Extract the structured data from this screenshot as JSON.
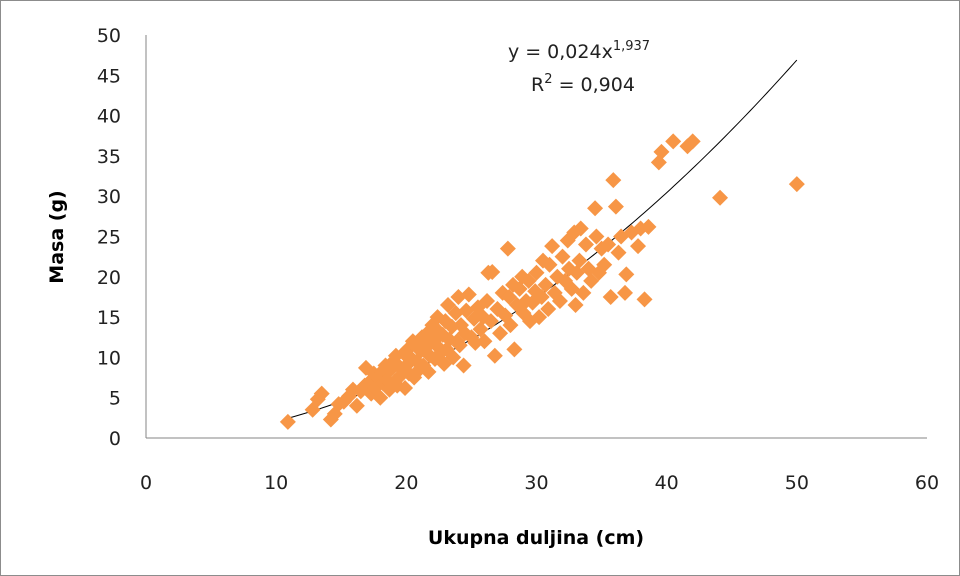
{
  "chart_data": {
    "type": "scatter",
    "xlabel": "Ukupna duljina (cm)",
    "ylabel": "Masa (g)",
    "xlim": [
      0,
      60
    ],
    "ylim": [
      0,
      50
    ],
    "xticks": [
      "0",
      "10",
      "20",
      "30",
      "40",
      "50",
      "60"
    ],
    "yticks": [
      "0",
      "5",
      "10",
      "15",
      "20",
      "25",
      "30",
      "35",
      "40",
      "45",
      "50"
    ],
    "grid": false,
    "marker": "diamond",
    "marker_color": "#F79646",
    "trendline": {
      "type": "power",
      "a": 0.024,
      "b": 1.937,
      "x_range": [
        11,
        50
      ],
      "color": "#000000",
      "equation_prefix": "y = 0,024x",
      "equation_exponent": "1,937",
      "r2_prefix": "R",
      "r2_sup": "2",
      "r2_value": " = 0,904"
    },
    "points": [
      [
        10.9,
        2.0
      ],
      [
        12.8,
        3.5
      ],
      [
        13.2,
        4.8
      ],
      [
        13.5,
        5.5
      ],
      [
        14.2,
        2.3
      ],
      [
        14.5,
        3.0
      ],
      [
        14.8,
        4.2
      ],
      [
        15.2,
        4.5
      ],
      [
        15.6,
        5.2
      ],
      [
        15.9,
        6.0
      ],
      [
        16.2,
        4.0
      ],
      [
        16.5,
        5.8
      ],
      [
        16.8,
        6.5
      ],
      [
        16.9,
        8.7
      ],
      [
        17.2,
        7.0
      ],
      [
        17.3,
        5.5
      ],
      [
        17.5,
        8.0
      ],
      [
        17.6,
        6.2
      ],
      [
        17.8,
        7.5
      ],
      [
        18.0,
        5.0
      ],
      [
        18.1,
        8.2
      ],
      [
        18.2,
        6.8
      ],
      [
        18.4,
        9.0
      ],
      [
        18.5,
        7.2
      ],
      [
        18.7,
        6.0
      ],
      [
        18.8,
        8.5
      ],
      [
        19.0,
        9.5
      ],
      [
        19.1,
        7.0
      ],
      [
        19.2,
        10.2
      ],
      [
        19.3,
        6.5
      ],
      [
        19.5,
        8.8
      ],
      [
        19.6,
        7.8
      ],
      [
        19.8,
        10.5
      ],
      [
        19.9,
        6.2
      ],
      [
        20.0,
        9.0
      ],
      [
        20.1,
        11.0
      ],
      [
        20.2,
        8.0
      ],
      [
        20.3,
        10.0
      ],
      [
        20.5,
        12.0
      ],
      [
        20.6,
        7.5
      ],
      [
        20.8,
        9.5
      ],
      [
        20.9,
        11.5
      ],
      [
        21.0,
        8.5
      ],
      [
        21.1,
        10.8
      ],
      [
        21.2,
        12.5
      ],
      [
        21.3,
        9.0
      ],
      [
        21.5,
        11.2
      ],
      [
        21.6,
        13.0
      ],
      [
        21.7,
        8.2
      ],
      [
        21.8,
        10.2
      ],
      [
        22.0,
        14.0
      ],
      [
        22.1,
        12.0
      ],
      [
        22.2,
        9.8
      ],
      [
        22.3,
        11.5
      ],
      [
        22.4,
        15.0
      ],
      [
        22.5,
        13.2
      ],
      [
        22.6,
        10.5
      ],
      [
        22.8,
        12.8
      ],
      [
        22.9,
        9.2
      ],
      [
        23.0,
        14.5
      ],
      [
        23.1,
        11.0
      ],
      [
        23.2,
        16.5
      ],
      [
        23.3,
        12.2
      ],
      [
        23.5,
        13.8
      ],
      [
        23.6,
        10.0
      ],
      [
        23.8,
        15.5
      ],
      [
        23.9,
        12.0
      ],
      [
        24.0,
        17.5
      ],
      [
        24.1,
        11.5
      ],
      [
        24.2,
        14.0
      ],
      [
        24.4,
        9.0
      ],
      [
        24.5,
        13.0
      ],
      [
        24.6,
        15.8
      ],
      [
        24.8,
        17.8
      ],
      [
        25.0,
        12.5
      ],
      [
        25.2,
        14.8
      ],
      [
        25.3,
        11.8
      ],
      [
        25.5,
        16.2
      ],
      [
        25.7,
        13.5
      ],
      [
        25.9,
        15.0
      ],
      [
        26.0,
        12.0
      ],
      [
        26.2,
        17.0
      ],
      [
        26.3,
        20.5
      ],
      [
        26.5,
        14.5
      ],
      [
        26.6,
        20.6
      ],
      [
        26.8,
        10.2
      ],
      [
        27.0,
        16.0
      ],
      [
        27.2,
        13.0
      ],
      [
        27.4,
        18.0
      ],
      [
        27.6,
        15.2
      ],
      [
        27.8,
        23.5
      ],
      [
        27.9,
        17.5
      ],
      [
        28.0,
        14.0
      ],
      [
        28.2,
        19.0
      ],
      [
        28.3,
        11.0
      ],
      [
        28.5,
        16.5
      ],
      [
        28.7,
        18.5
      ],
      [
        28.9,
        20.0
      ],
      [
        29.0,
        15.5
      ],
      [
        29.2,
        17.0
      ],
      [
        29.4,
        19.5
      ],
      [
        29.5,
        14.5
      ],
      [
        29.7,
        16.8
      ],
      [
        29.9,
        18.2
      ],
      [
        30.0,
        20.5
      ],
      [
        30.2,
        15.0
      ],
      [
        30.4,
        17.5
      ],
      [
        30.5,
        22.0
      ],
      [
        30.7,
        19.0
      ],
      [
        30.9,
        16.0
      ],
      [
        31.0,
        21.5
      ],
      [
        31.2,
        23.8
      ],
      [
        31.4,
        18.0
      ],
      [
        31.6,
        20.0
      ],
      [
        31.8,
        17.0
      ],
      [
        32.0,
        22.5
      ],
      [
        32.2,
        19.5
      ],
      [
        32.4,
        24.5
      ],
      [
        32.5,
        21.0
      ],
      [
        32.7,
        18.5
      ],
      [
        32.9,
        25.5
      ],
      [
        33.0,
        16.5
      ],
      [
        33.1,
        20.5
      ],
      [
        33.3,
        22.0
      ],
      [
        33.4,
        26.0
      ],
      [
        33.6,
        18.0
      ],
      [
        33.8,
        24.0
      ],
      [
        34.0,
        21.0
      ],
      [
        34.2,
        19.5
      ],
      [
        34.5,
        28.5
      ],
      [
        34.6,
        25.0
      ],
      [
        34.8,
        20.5
      ],
      [
        35.0,
        23.5
      ],
      [
        35.2,
        21.5
      ],
      [
        35.5,
        24.0
      ],
      [
        35.7,
        17.5
      ],
      [
        35.9,
        32.0
      ],
      [
        36.1,
        28.7
      ],
      [
        36.3,
        23.0
      ],
      [
        36.5,
        25.0
      ],
      [
        36.8,
        18.0
      ],
      [
        36.9,
        20.3
      ],
      [
        37.3,
        25.5
      ],
      [
        37.8,
        23.8
      ],
      [
        38.0,
        26.0
      ],
      [
        38.3,
        17.2
      ],
      [
        38.6,
        26.2
      ],
      [
        39.4,
        34.2
      ],
      [
        39.6,
        35.5
      ],
      [
        40.5,
        36.8
      ],
      [
        41.6,
        36.2
      ],
      [
        42.0,
        36.8
      ],
      [
        44.1,
        29.8
      ],
      [
        50.0,
        31.5
      ]
    ]
  }
}
